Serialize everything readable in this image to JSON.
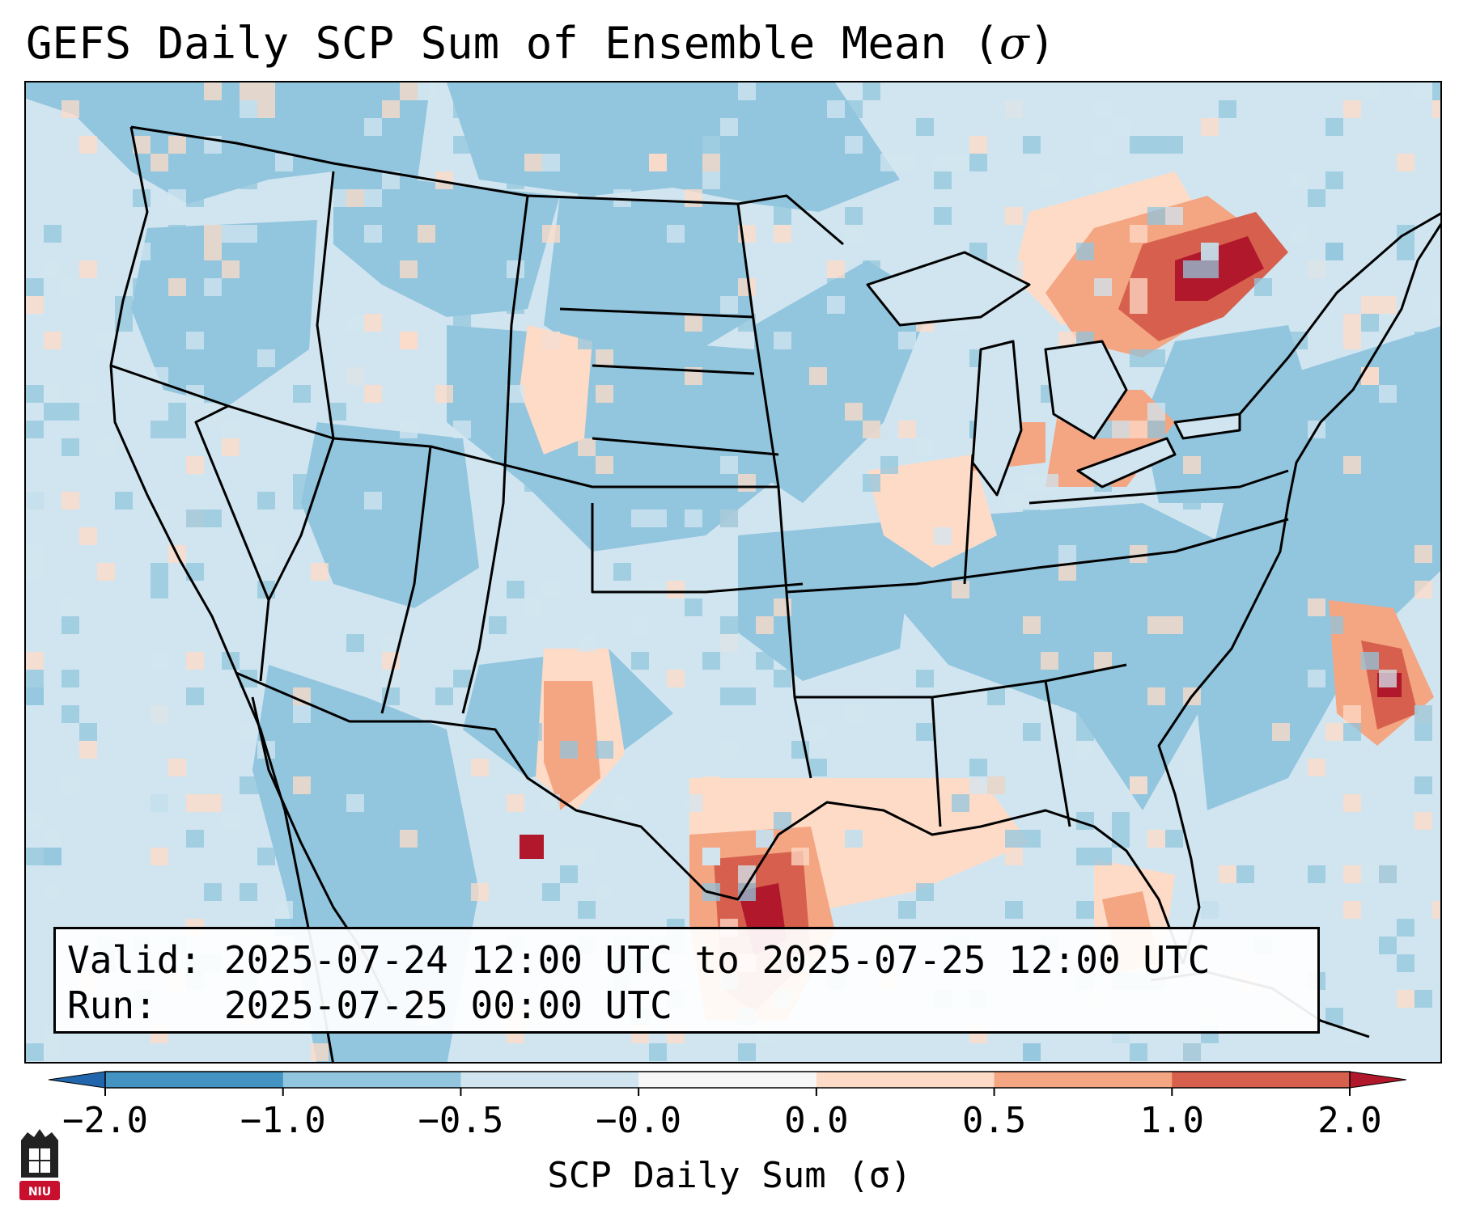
{
  "title": {
    "prefix": "GEFS Daily SCP Sum of Ensemble Mean (",
    "symbol": "σ",
    "suffix": ")"
  },
  "infobox": {
    "valid_label": "Valid:",
    "valid_value": "2025-07-24 12:00 UTC to 2025-07-25 12:00 UTC",
    "run_label": "Run:",
    "run_value": "2025-07-25 00:00 UTC"
  },
  "colorbar": {
    "title": "SCP Daily Sum (σ)",
    "tick_labels": [
      "−2.0",
      "−1.0",
      "−0.5",
      "−0.0",
      "0.0",
      "0.5",
      "1.0",
      "2.0"
    ],
    "colors": [
      "#4393c3",
      "#92c5de",
      "#d1e5f0",
      "#f7f7f7",
      "#fddbc7",
      "#f4a582",
      "#d6604d",
      "#b2182b"
    ],
    "extend_low_color": "#2166ac",
    "extend_high_color": "#b2182b"
  },
  "logo": {
    "text": "NIU",
    "color": "#c8102e"
  },
  "map": {
    "background_color": "#d1e5f0",
    "region": "Contiguous United States, northern Mexico, southern Canada"
  }
}
